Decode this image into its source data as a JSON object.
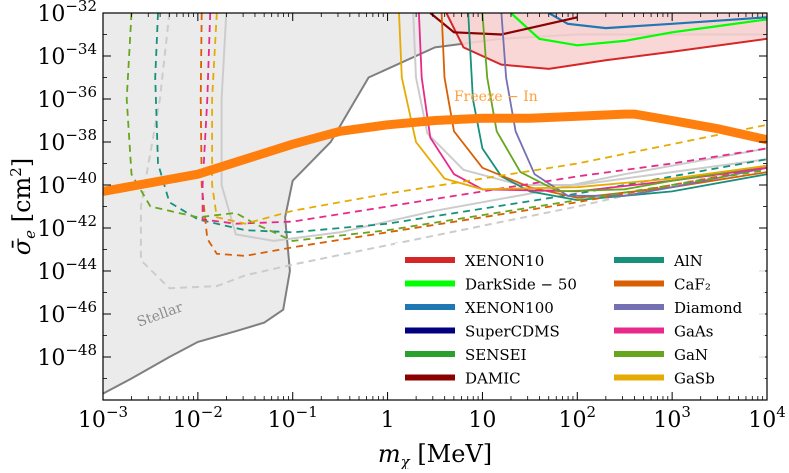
{
  "chart_data": {
    "type": "line",
    "xlabel": "m_χ [MeV]",
    "ylabel": "σ̄_e [cm²]",
    "x_scale": "log",
    "y_scale": "log",
    "xlim_log10": [
      -3,
      4
    ],
    "ylim_log10": [
      -50,
      -32
    ],
    "xticks": [
      "10^-3",
      "10^-2",
      "10^-1",
      "1",
      "10",
      "10^2",
      "10^3",
      "10^4"
    ],
    "yticks": [
      "10^-48",
      "10^-46",
      "10^-44",
      "10^-42",
      "10^-40",
      "10^-38",
      "10^-36",
      "10^-34",
      "10^-32"
    ],
    "grid": false,
    "legend_position": "lower-right",
    "annotations": {
      "stellar": "Stellar",
      "freeze_in": "Freeze − In"
    },
    "regions": [
      {
        "name": "Stellar",
        "color": "#ebebeb",
        "edge": "#7f7f7f",
        "log_points": [
          [
            -3,
            -49.7
          ],
          [
            -2.7,
            -49
          ],
          [
            -2.3,
            -48
          ],
          [
            -2,
            -47.3
          ],
          [
            -1.6,
            -46.8
          ],
          [
            -1.3,
            -46.4
          ],
          [
            -1.1,
            -45.8
          ],
          [
            -1.03,
            -44
          ],
          [
            -1.08,
            -41.5
          ],
          [
            -1,
            -39.8
          ],
          [
            -0.6,
            -38
          ],
          [
            -0.4,
            -36.5
          ],
          [
            -0.2,
            -35
          ],
          [
            0.5,
            -33.6
          ],
          [
            1.2,
            -33.2
          ],
          [
            2,
            -33
          ],
          [
            4,
            -33
          ]
        ]
      },
      {
        "name": "XENON10",
        "color": "#f8d3d3",
        "edge": "#d62728",
        "log_points": [
          [
            0.62,
            -32
          ],
          [
            0.8,
            -33.6
          ],
          [
            1.2,
            -34.4
          ],
          [
            1.7,
            -34.6
          ],
          [
            2.3,
            -34.2
          ],
          [
            3,
            -33.8
          ],
          [
            4,
            -33.2
          ]
        ]
      },
      {
        "name": "DarkSide − 50",
        "color": "#00ff00",
        "log_points": [
          [
            1.3,
            -32
          ],
          [
            1.6,
            -33.2
          ],
          [
            2,
            -33.5
          ],
          [
            2.5,
            -33.3
          ],
          [
            3,
            -32.9
          ],
          [
            3.5,
            -32.6
          ],
          [
            4,
            -32.3
          ]
        ]
      },
      {
        "name": "XENON100",
        "color": "#1f77b4",
        "log_points": [
          [
            1.7,
            -32
          ],
          [
            1.9,
            -32.5
          ],
          [
            2.3,
            -32.7
          ],
          [
            3,
            -32.5
          ],
          [
            4,
            -32.2
          ]
        ]
      },
      {
        "name": "DAMIC",
        "color": "#8b0000",
        "log_points": [
          [
            0.45,
            -32
          ],
          [
            0.7,
            -32.9
          ],
          [
            1.2,
            -33
          ],
          [
            1.6,
            -32.6
          ],
          [
            2,
            -32.2
          ]
        ]
      }
    ],
    "freeze_in": {
      "name": "Freeze − In",
      "color": "#ff7f0e",
      "log_points": [
        [
          -3,
          -40.3
        ],
        [
          -2,
          -39.5
        ],
        [
          -1.5,
          -38.8
        ],
        [
          -1,
          -38.1
        ],
        [
          -0.5,
          -37.5
        ],
        [
          0,
          -37.2
        ],
        [
          0.5,
          -37
        ],
        [
          1,
          -36.9
        ],
        [
          1.5,
          -36.9
        ],
        [
          2,
          -36.8
        ],
        [
          2.5,
          -36.7
        ],
        [
          2.6,
          -36.7
        ],
        [
          3,
          -37
        ],
        [
          3.5,
          -37.4
        ],
        [
          4,
          -37.9
        ]
      ]
    },
    "series": [
      {
        "name": "XENON10",
        "color": "#d62728"
      },
      {
        "name": "DarkSide − 50",
        "color": "#00ff00"
      },
      {
        "name": "XENON100",
        "color": "#1f77b4"
      },
      {
        "name": "SuperCDMS",
        "color": "#000080"
      },
      {
        "name": "SENSEI",
        "color": "#2ca02c"
      },
      {
        "name": "DAMIC",
        "color": "#8b0000"
      },
      {
        "name": "AlN",
        "color": "#17907c",
        "solid": [
          [
            0.85,
            -32
          ],
          [
            0.9,
            -36
          ],
          [
            1,
            -38.3
          ],
          [
            1.2,
            -39.6
          ],
          [
            1.5,
            -40.3
          ],
          [
            2,
            -40.7
          ],
          [
            3,
            -40.3
          ],
          [
            4,
            -39.5
          ]
        ],
        "dashed": [
          [
            -2.42,
            -32
          ],
          [
            -2.45,
            -35
          ],
          [
            -2.42,
            -39
          ],
          [
            -2.3,
            -40.8
          ],
          [
            -2,
            -41.6
          ],
          [
            -1.5,
            -42.1
          ],
          [
            -1,
            -42.2
          ],
          [
            0,
            -41.8
          ],
          [
            1,
            -41.1
          ],
          [
            2,
            -40.4
          ],
          [
            3,
            -39.6
          ],
          [
            4,
            -38.8
          ]
        ]
      },
      {
        "name": "CaF₂",
        "color": "#d95f02",
        "solid": [
          [
            0.57,
            -32
          ],
          [
            0.6,
            -35
          ],
          [
            0.7,
            -37.5
          ],
          [
            1,
            -39.2
          ],
          [
            1.5,
            -40.1
          ],
          [
            2,
            -40.6
          ],
          [
            3,
            -40.1
          ],
          [
            4,
            -39.4
          ]
        ],
        "dashed": [
          [
            -1.96,
            -32
          ],
          [
            -1.97,
            -36
          ],
          [
            -1.96,
            -40
          ],
          [
            -1.9,
            -42.5
          ],
          [
            -1.8,
            -43.2
          ],
          [
            -1.5,
            -43.3
          ],
          [
            -1,
            -42.9
          ],
          [
            0,
            -42.2
          ],
          [
            1,
            -41.5
          ],
          [
            2,
            -40.8
          ],
          [
            3,
            -40
          ],
          [
            4,
            -39.2
          ]
        ]
      },
      {
        "name": "Diamond",
        "color": "#7570b3",
        "solid": [
          [
            1.2,
            -32
          ],
          [
            1.25,
            -35
          ],
          [
            1.35,
            -37.5
          ],
          [
            1.55,
            -39.5
          ],
          [
            1.9,
            -40.5
          ],
          [
            2.5,
            -40.5
          ],
          [
            3,
            -40.1
          ],
          [
            4,
            -39.2
          ]
        ]
      },
      {
        "name": "GaAs",
        "color": "#e7298a",
        "solid": [
          [
            0.33,
            -32
          ],
          [
            0.36,
            -35
          ],
          [
            0.45,
            -37.8
          ],
          [
            0.7,
            -39.5
          ],
          [
            1,
            -40.2
          ],
          [
            2,
            -40.3
          ],
          [
            3,
            -39.8
          ],
          [
            4,
            -39.2
          ]
        ],
        "dashed": [
          [
            -1.87,
            -32
          ],
          [
            -1.9,
            -36
          ],
          [
            -1.95,
            -40
          ],
          [
            -1.95,
            -41.6
          ],
          [
            -1.6,
            -41.8
          ],
          [
            -1,
            -41.7
          ],
          [
            0,
            -41
          ],
          [
            1,
            -40.3
          ],
          [
            2,
            -39.6
          ],
          [
            3,
            -39
          ],
          [
            4,
            -38.3
          ]
        ]
      },
      {
        "name": "GaN",
        "color": "#66a61e",
        "solid": [
          [
            1,
            -32
          ],
          [
            1.05,
            -35
          ],
          [
            1.15,
            -37.5
          ],
          [
            1.4,
            -39.4
          ],
          [
            1.8,
            -40.3
          ],
          [
            2.5,
            -40.2
          ],
          [
            3,
            -39.8
          ],
          [
            4,
            -39.1
          ]
        ],
        "dashed": [
          [
            -2.7,
            -32
          ],
          [
            -2.75,
            -36
          ],
          [
            -2.7,
            -39.5
          ],
          [
            -2.5,
            -41
          ],
          [
            -2,
            -41.5
          ],
          [
            -1.6,
            -41.3
          ],
          [
            -1.4,
            -41.8
          ],
          [
            -1,
            -42.6
          ],
          [
            0,
            -42.1
          ],
          [
            1,
            -41.4
          ],
          [
            2,
            -40.7
          ],
          [
            3,
            -40
          ],
          [
            4,
            -39.3
          ]
        ]
      },
      {
        "name": "GaSb",
        "color": "#e6ab02",
        "solid": [
          [
            0.12,
            -32
          ],
          [
            0.15,
            -35
          ],
          [
            0.3,
            -38
          ],
          [
            0.6,
            -39.7
          ],
          [
            1,
            -40.2
          ],
          [
            2,
            -40.1
          ],
          [
            3,
            -39.7
          ],
          [
            4,
            -39.1
          ]
        ],
        "dashed": [
          [
            -1.8,
            -32
          ],
          [
            -1.85,
            -36
          ],
          [
            -1.85,
            -40
          ],
          [
            -1.8,
            -41.5
          ],
          [
            -1.5,
            -41.8
          ],
          [
            -1,
            -41.2
          ],
          [
            0,
            -40.4
          ],
          [
            1,
            -39.7
          ],
          [
            2,
            -39
          ],
          [
            3,
            -38.1
          ],
          [
            4,
            -37.2
          ]
        ]
      }
    ],
    "gray_curves": [
      {
        "style": "solid",
        "log_points": [
          [
            -1.7,
            -32
          ],
          [
            -1.75,
            -36
          ],
          [
            -1.75,
            -40
          ],
          [
            -1.6,
            -42.3
          ],
          [
            -1.2,
            -42.6
          ],
          [
            -0.5,
            -42.2
          ],
          [
            0.5,
            -41.2
          ],
          [
            1.5,
            -40.4
          ],
          [
            2.5,
            -39.5
          ],
          [
            3.5,
            -38.7
          ],
          [
            4,
            -38.3
          ]
        ]
      },
      {
        "style": "solid",
        "log_points": [
          [
            0.27,
            -32
          ],
          [
            0.3,
            -35
          ],
          [
            0.42,
            -37.6
          ],
          [
            0.8,
            -39.3
          ],
          [
            1.4,
            -40
          ],
          [
            2,
            -40
          ],
          [
            3,
            -39.4
          ],
          [
            4,
            -38.8
          ]
        ]
      },
      {
        "style": "dashed",
        "log_points": [
          [
            -2.3,
            -32
          ],
          [
            -2.4,
            -36
          ],
          [
            -2.6,
            -41
          ],
          [
            -2.6,
            -43.5
          ],
          [
            -2.3,
            -44.8
          ],
          [
            -1.8,
            -44.7
          ],
          [
            -1.5,
            -44.2
          ],
          [
            -1,
            -43.7
          ],
          [
            0,
            -42.8
          ],
          [
            1,
            -41.9
          ],
          [
            2,
            -41
          ],
          [
            3,
            -40
          ],
          [
            4,
            -39.1
          ]
        ]
      }
    ]
  }
}
